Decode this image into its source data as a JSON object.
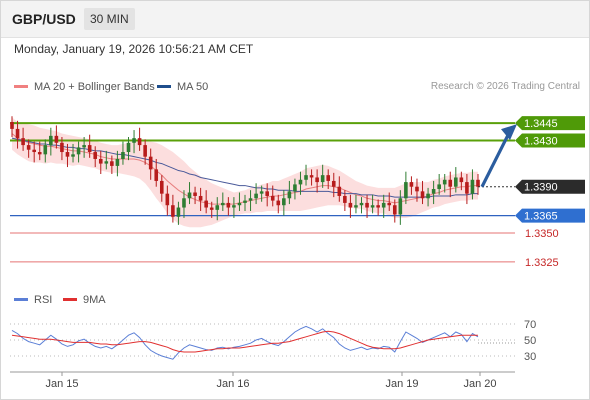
{
  "header": {
    "symbol": "GBP/USD",
    "timeframe": "30 MIN"
  },
  "datetime": "Monday, January 19, 2026 10:56:21 AM CET",
  "legend": {
    "bollinger": {
      "label": "MA 20 + Bollinger Bands",
      "color": "#f08080"
    },
    "ma50": {
      "label": "MA 50",
      "color": "#1f4e8c"
    }
  },
  "copyright": "Research © 2026 Trading Central",
  "rsi_legend": {
    "rsi": {
      "label": "RSI",
      "color": "#5b7fd6"
    },
    "ma9": {
      "label": "9MA",
      "color": "#e03030"
    }
  },
  "colors": {
    "up": "#2e7d32",
    "down": "#b71c1c",
    "resistance": "#5aa00a",
    "pivot": "#2f62c0",
    "support": "#e57373",
    "arrow": "#2b5d9f"
  },
  "chart_data": [
    {
      "type": "candlestick",
      "title": "GBP/USD",
      "ylim": [
        1.3305,
        1.3465
      ],
      "x_ticks": [
        "Jan 15",
        "Jan 16",
        "Jan 19",
        "Jan 20"
      ],
      "current_price": "1.3390",
      "levels": [
        {
          "value": "1.3445",
          "kind": "resistance"
        },
        {
          "value": "1.3430",
          "kind": "resistance"
        },
        {
          "value": "1.3365",
          "kind": "pivot"
        },
        {
          "value": "1.3350",
          "kind": "support"
        },
        {
          "value": "1.3325",
          "kind": "support"
        }
      ],
      "close_series": [
        1.344,
        1.3432,
        1.3426,
        1.3422,
        1.342,
        1.3418,
        1.3426,
        1.3434,
        1.3428,
        1.342,
        1.3416,
        1.3418,
        1.3424,
        1.3426,
        1.342,
        1.3414,
        1.341,
        1.3412,
        1.3408,
        1.3414,
        1.342,
        1.3428,
        1.3432,
        1.3426,
        1.3416,
        1.3405,
        1.3395,
        1.3384,
        1.3374,
        1.3364,
        1.3372,
        1.338,
        1.3385,
        1.3382,
        1.3378,
        1.3372,
        1.337,
        1.3374,
        1.3376,
        1.3372,
        1.3374,
        1.3376,
        1.3378,
        1.338,
        1.3384,
        1.3386,
        1.3382,
        1.3378,
        1.3374,
        1.338,
        1.3386,
        1.3392,
        1.3396,
        1.34,
        1.3398,
        1.3394,
        1.34,
        1.3395,
        1.339,
        1.3382,
        1.3376,
        1.3372,
        1.3374,
        1.3376,
        1.3372,
        1.3374,
        1.3372,
        1.3376,
        1.3374,
        1.3366,
        1.338,
        1.3394,
        1.339,
        1.3386,
        1.338,
        1.3384,
        1.3388,
        1.3392,
        1.3396,
        1.339,
        1.3398,
        1.3394,
        1.3384,
        1.3396,
        1.339
      ],
      "ma20": [
        1.3436,
        1.3432,
        1.343,
        1.3428,
        1.3427,
        1.3426,
        1.3425,
        1.3425,
        1.3424,
        1.3423,
        1.3422,
        1.3421,
        1.3421,
        1.342,
        1.3419,
        1.3418,
        1.3416,
        1.3415,
        1.3414,
        1.3414,
        1.3414,
        1.3414,
        1.3414,
        1.3413,
        1.3411,
        1.3408,
        1.3404,
        1.34,
        1.3395,
        1.3391,
        1.3387,
        1.3384,
        1.3381,
        1.3379,
        1.3377,
        1.3376,
        1.3375,
        1.3375,
        1.3375,
        1.3375,
        1.3375,
        1.3376,
        1.3377,
        1.3378,
        1.3379,
        1.338,
        1.3381,
        1.3382,
        1.3382,
        1.3383,
        1.3384,
        1.3385,
        1.3386,
        1.3388,
        1.3389,
        1.339,
        1.3391,
        1.3391,
        1.339,
        1.3389,
        1.3387,
        1.3385,
        1.3383,
        1.3382,
        1.338,
        1.3379,
        1.3378,
        1.3378,
        1.3377,
        1.3376,
        1.3377,
        1.3378,
        1.3379,
        1.338,
        1.3381,
        1.3382,
        1.3384,
        1.3385,
        1.3387,
        1.3388,
        1.3389,
        1.339,
        1.339,
        1.3391,
        1.3391
      ],
      "ma50": [
        1.3432,
        1.3431,
        1.343,
        1.3429,
        1.3428,
        1.3427,
        1.3427,
        1.3426,
        1.3426,
        1.3425,
        1.3424,
        1.3424,
        1.3423,
        1.3423,
        1.3422,
        1.3421,
        1.3421,
        1.342,
        1.3419,
        1.3418,
        1.3418,
        1.3417,
        1.3416,
        1.3415,
        1.3414,
        1.3413,
        1.3411,
        1.341,
        1.3408,
        1.3406,
        1.3404,
        1.3403,
        1.3401,
        1.34,
        1.3398,
        1.3397,
        1.3396,
        1.3395,
        1.3394,
        1.3393,
        1.3392,
        1.3391,
        1.3391,
        1.339,
        1.3389,
        1.3389,
        1.3388,
        1.3388,
        1.3387,
        1.3387,
        1.3387,
        1.3386,
        1.3386,
        1.3386,
        1.3386,
        1.3386,
        1.3386,
        1.3386,
        1.3385,
        1.3385,
        1.3384,
        1.3384,
        1.3384,
        1.3383,
        1.3383,
        1.3383,
        1.3382,
        1.3382,
        1.3382,
        1.3381,
        1.3381,
        1.3381,
        1.3381,
        1.3381,
        1.3381,
        1.3381,
        1.3382,
        1.3382,
        1.3382,
        1.3382,
        1.3383,
        1.3383,
        1.3383,
        1.3384,
        1.3384
      ],
      "band_width": [
        0.0014,
        0.0014,
        0.0015,
        0.0016,
        0.0016,
        0.0015,
        0.0015,
        0.0014,
        0.0014,
        0.0013,
        0.0013,
        0.0013,
        0.0012,
        0.0012,
        0.0012,
        0.0012,
        0.0012,
        0.0012,
        0.0012,
        0.0012,
        0.0013,
        0.0014,
        0.0015,
        0.0016,
        0.0018,
        0.0021,
        0.0024,
        0.0026,
        0.0028,
        0.0029,
        0.0029,
        0.0028,
        0.0026,
        0.0024,
        0.0022,
        0.002,
        0.0018,
        0.0016,
        0.0014,
        0.0012,
        0.001,
        0.001,
        0.001,
        0.0011,
        0.0011,
        0.0012,
        0.0012,
        0.0013,
        0.0013,
        0.0014,
        0.0015,
        0.0016,
        0.0017,
        0.0018,
        0.0018,
        0.0018,
        0.0018,
        0.0017,
        0.0016,
        0.0015,
        0.0014,
        0.0013,
        0.0012,
        0.0011,
        0.0011,
        0.0011,
        0.0011,
        0.0011,
        0.0012,
        0.0013,
        0.0014,
        0.0015,
        0.0015,
        0.0014,
        0.0013,
        0.0012,
        0.0012,
        0.0012,
        0.0012,
        0.0012,
        0.0012,
        0.0012,
        0.0012,
        0.0012,
        0.0012
      ]
    },
    {
      "type": "line",
      "title": "RSI",
      "ylim": [
        15,
        85
      ],
      "y_ticks": [
        70,
        50,
        30
      ],
      "series": [
        {
          "name": "RSI",
          "values": [
            62,
            58,
            52,
            48,
            46,
            44,
            50,
            56,
            51,
            45,
            42,
            44,
            49,
            51,
            46,
            42,
            40,
            42,
            39,
            44,
            50,
            56,
            59,
            53,
            44,
            37,
            33,
            30,
            28,
            26,
            34,
            40,
            44,
            42,
            40,
            38,
            37,
            40,
            41,
            39,
            41,
            42,
            44,
            46,
            50,
            52,
            48,
            45,
            43,
            48,
            54,
            60,
            64,
            67,
            64,
            60,
            64,
            58,
            53,
            45,
            40,
            37,
            39,
            41,
            38,
            40,
            39,
            42,
            41,
            35,
            48,
            60,
            56,
            52,
            47,
            50,
            53,
            56,
            59,
            54,
            60,
            57,
            48,
            58,
            54
          ]
        },
        {
          "name": "9MA",
          "values": [
            56,
            55,
            54,
            53,
            52,
            51,
            51,
            51,
            50,
            49,
            48,
            47,
            47,
            47,
            47,
            46,
            45,
            45,
            44,
            44,
            45,
            46,
            47,
            48,
            48,
            47,
            45,
            43,
            41,
            38,
            36,
            35,
            35,
            35,
            36,
            37,
            38,
            39,
            39,
            40,
            40,
            40,
            41,
            42,
            43,
            44,
            45,
            46,
            46,
            47,
            48,
            50,
            52,
            54,
            56,
            58,
            60,
            61,
            60,
            58,
            55,
            52,
            49,
            46,
            43,
            41,
            40,
            39,
            39,
            39,
            40,
            42,
            44,
            46,
            48,
            50,
            51,
            52,
            53,
            54,
            55,
            56,
            56,
            56,
            56
          ]
        }
      ]
    }
  ]
}
